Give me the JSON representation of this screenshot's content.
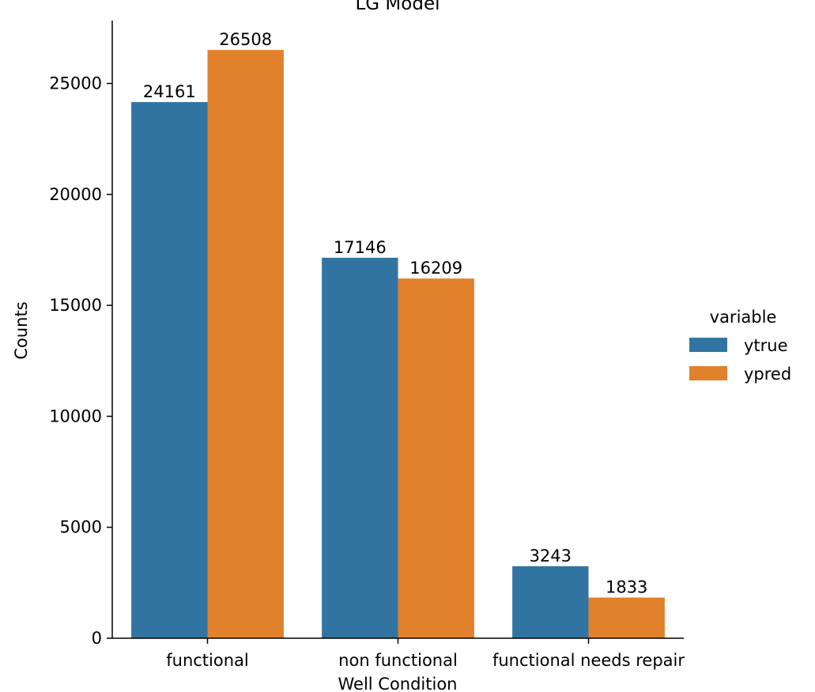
{
  "chart_data": {
    "type": "bar",
    "title": "LG Model",
    "xlabel": "Well Condition",
    "ylabel": "Counts",
    "categories": [
      "functional",
      "non functional",
      "functional needs repair"
    ],
    "series": [
      {
        "name": "ytrue",
        "values": [
          24161,
          17146,
          3243
        ],
        "color": "#3274a1"
      },
      {
        "name": "ypred",
        "values": [
          26508,
          16209,
          1833
        ],
        "color": "#e1812c"
      }
    ],
    "yticks": [
      0,
      5000,
      10000,
      15000,
      20000,
      25000
    ],
    "ylim": [
      0,
      27834
    ],
    "grid": false,
    "legend": {
      "title": "variable",
      "position": "right"
    }
  }
}
